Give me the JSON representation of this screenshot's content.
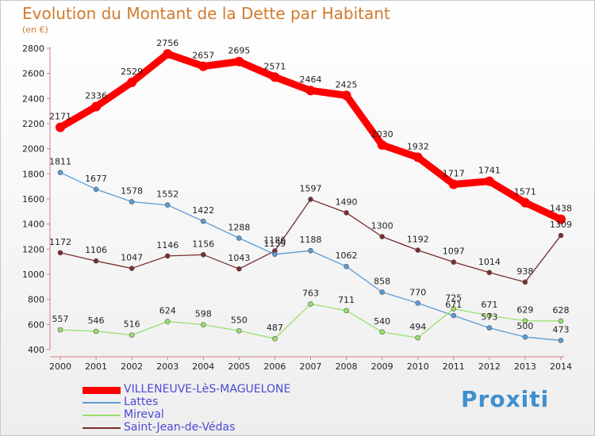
{
  "page": {
    "title": "Evolution du Montant de la Dette par Habitant",
    "subtitle": "(en €)",
    "logo": "Proxiti"
  },
  "chart_data": {
    "type": "line",
    "title": "Evolution du Montant de la Dette par Habitant",
    "subtitle": "(en €)",
    "xlabel": "",
    "ylabel": "",
    "x": [
      "2000",
      "2001",
      "2002",
      "2003",
      "2004",
      "2005",
      "2006",
      "2007",
      "2008",
      "2009",
      "2010",
      "2011",
      "2012",
      "2013",
      "2014"
    ],
    "ylim": [
      400,
      2800
    ],
    "yticks": [
      400,
      600,
      800,
      1000,
      1200,
      1400,
      1600,
      1800,
      2000,
      2200,
      2400,
      2600,
      2800
    ],
    "grid": false,
    "legend": "bottom-left",
    "series": [
      {
        "name": "VILLENEUVE-LèS-MAGUELONE",
        "color": "#ff0000",
        "values": [
          2171,
          2336,
          2529,
          2756,
          2657,
          2695,
          2571,
          2464,
          2425,
          2030,
          1932,
          1717,
          1741,
          1571,
          1438
        ]
      },
      {
        "name": "Lattes",
        "color": "#5b9bd5",
        "values": [
          1811,
          1677,
          1578,
          1552,
          1422,
          1288,
          1159,
          1188,
          1062,
          858,
          770,
          671,
          573,
          500,
          473
        ]
      },
      {
        "name": "Mireval",
        "color": "#99e06a",
        "values": [
          557,
          546,
          516,
          624,
          598,
          550,
          487,
          763,
          711,
          540,
          494,
          725,
          671,
          629,
          628
        ]
      },
      {
        "name": "Saint-Jean-de-Védas",
        "color": "#7a2d2d",
        "values": [
          1172,
          1106,
          1047,
          1146,
          1156,
          1043,
          1186,
          1597,
          1490,
          1300,
          1192,
          1097,
          1014,
          938,
          1309
        ]
      }
    ]
  }
}
